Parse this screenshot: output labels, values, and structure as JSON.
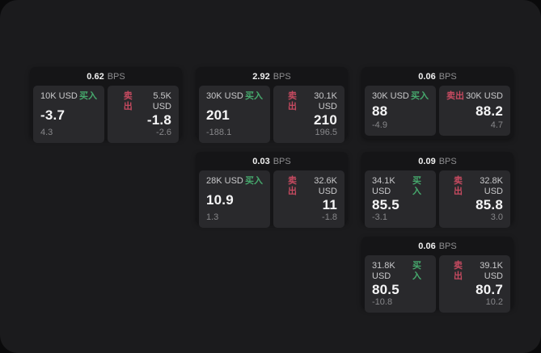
{
  "labels": {
    "buy": "买入",
    "sell": "卖出",
    "bps_unit": "BPS"
  },
  "colors": {
    "buy": "#46a96d",
    "sell": "#c64a60",
    "window_bg": "#1b1b1d",
    "card_bg": "#151517",
    "panel_bg": "#29292c"
  },
  "cards": [
    {
      "row": 1,
      "col": 1,
      "bps": "0.62",
      "buy": {
        "size": "10K USD",
        "price": "-3.7",
        "delta": "4.3"
      },
      "sell": {
        "size": "5.5K USD",
        "price": "-1.8",
        "delta": "-2.6"
      }
    },
    {
      "row": 1,
      "col": 2,
      "bps": "2.92",
      "buy": {
        "size": "30K USD",
        "price": "201",
        "delta": "-188.1"
      },
      "sell": {
        "size": "30.1K USD",
        "price": "210",
        "delta": "196.5"
      }
    },
    {
      "row": 1,
      "col": 3,
      "bps": "0.06",
      "buy": {
        "size": "30K USD",
        "price": "88",
        "delta": "-4.9"
      },
      "sell": {
        "size": "30K USD",
        "price": "88.2",
        "delta": "4.7"
      }
    },
    {
      "row": 2,
      "col": 2,
      "bps": "0.03",
      "buy": {
        "size": "28K USD",
        "price": "10.9",
        "delta": "1.3"
      },
      "sell": {
        "size": "32.6K USD",
        "price": "11",
        "delta": "-1.8"
      }
    },
    {
      "row": 2,
      "col": 3,
      "bps": "0.09",
      "buy": {
        "size": "34.1K USD",
        "price": "85.5",
        "delta": "-3.1"
      },
      "sell": {
        "size": "32.8K USD",
        "price": "85.8",
        "delta": "3.0"
      }
    },
    {
      "row": 3,
      "col": 3,
      "bps": "0.06",
      "buy": {
        "size": "31.8K USD",
        "price": "80.5",
        "delta": "-10.8"
      },
      "sell": {
        "size": "39.1K USD",
        "price": "80.7",
        "delta": "10.2"
      }
    }
  ]
}
